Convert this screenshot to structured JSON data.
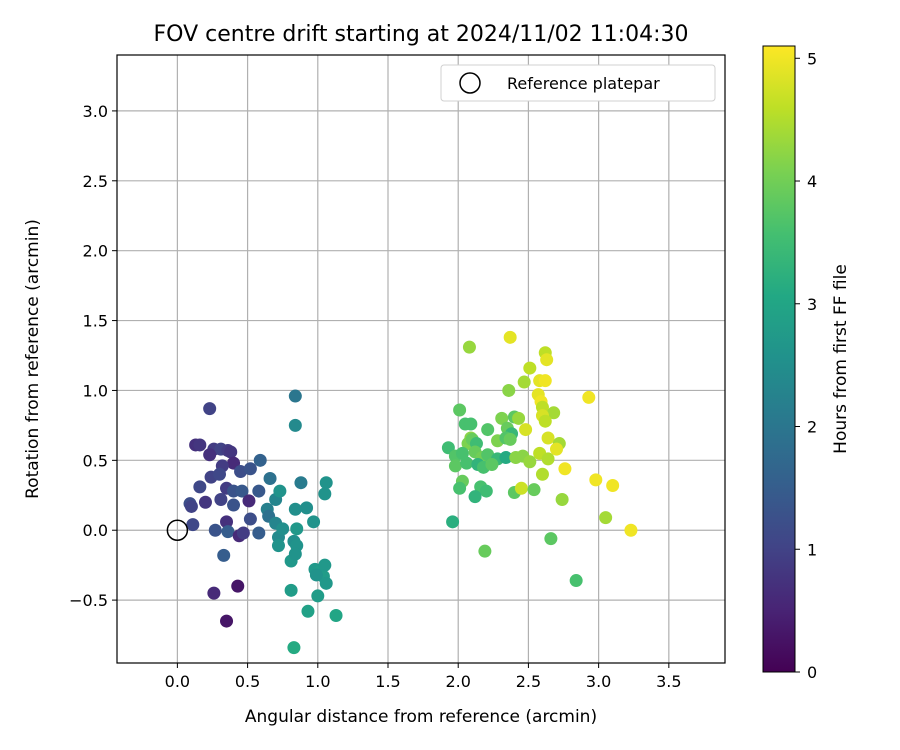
{
  "chart_data": {
    "type": "scatter",
    "title": "FOV centre drift starting at 2024/11/02 11:04:30",
    "xlabel": "Angular distance from reference (arcmin)",
    "ylabel": "Rotation from reference (arcmin)",
    "xlim": [
      -0.43,
      3.9
    ],
    "ylim": [
      -0.95,
      3.4
    ],
    "xticks": [
      "0.0",
      "0.5",
      "1.0",
      "1.5",
      "2.0",
      "2.5",
      "3.0",
      "3.5"
    ],
    "xtick_values": [
      0,
      0.5,
      1.0,
      1.5,
      2.0,
      2.5,
      3.0,
      3.5
    ],
    "yticks": [
      "−0.5",
      "0.0",
      "0.5",
      "1.0",
      "1.5",
      "2.0",
      "2.5",
      "3.0"
    ],
    "ytick_values": [
      -0.5,
      0,
      0.5,
      1.0,
      1.5,
      2.0,
      2.5,
      3.0
    ],
    "grid": true,
    "legend": {
      "placement": "top-right",
      "label": "Reference platepar"
    },
    "reference_point": {
      "x": 0,
      "y": 0
    },
    "colorbar": {
      "label": "Hours from first FF file",
      "colormap": "viridis",
      "range": [
        0,
        5.1
      ],
      "ticks": [
        "0",
        "1",
        "2",
        "3",
        "4",
        "5"
      ],
      "tick_values": [
        0,
        1,
        2,
        3,
        4,
        5
      ]
    },
    "points": [
      {
        "x": 0.35,
        "y": -0.65,
        "t": 0.3
      },
      {
        "x": 0.43,
        "y": -0.4,
        "t": 0.3
      },
      {
        "x": 0.26,
        "y": -0.45,
        "t": 0.6
      },
      {
        "x": 0.23,
        "y": 0.87,
        "t": 1.0
      },
      {
        "x": 0.13,
        "y": 0.61,
        "t": 0.7
      },
      {
        "x": 0.16,
        "y": 0.61,
        "t": 0.8
      },
      {
        "x": 0.26,
        "y": 0.58,
        "t": 0.9
      },
      {
        "x": 0.31,
        "y": 0.58,
        "t": 1.0
      },
      {
        "x": 0.36,
        "y": 0.57,
        "t": 0.9
      },
      {
        "x": 0.38,
        "y": 0.56,
        "t": 0.8
      },
      {
        "x": 0.23,
        "y": 0.54,
        "t": 0.7
      },
      {
        "x": 0.4,
        "y": 0.48,
        "t": 0.6
      },
      {
        "x": 0.32,
        "y": 0.46,
        "t": 0.9
      },
      {
        "x": 0.45,
        "y": 0.42,
        "t": 1.2
      },
      {
        "x": 0.52,
        "y": 0.44,
        "t": 1.3
      },
      {
        "x": 0.59,
        "y": 0.5,
        "t": 1.6
      },
      {
        "x": 0.24,
        "y": 0.38,
        "t": 1.0
      },
      {
        "x": 0.3,
        "y": 0.4,
        "t": 1.1
      },
      {
        "x": 0.35,
        "y": 0.3,
        "t": 0.9
      },
      {
        "x": 0.16,
        "y": 0.31,
        "t": 1.1
      },
      {
        "x": 0.4,
        "y": 0.28,
        "t": 1.3
      },
      {
        "x": 0.46,
        "y": 0.28,
        "t": 1.4
      },
      {
        "x": 0.58,
        "y": 0.28,
        "t": 1.4
      },
      {
        "x": 0.09,
        "y": 0.19,
        "t": 1.2
      },
      {
        "x": 0.1,
        "y": 0.17,
        "t": 1.0
      },
      {
        "x": 0.2,
        "y": 0.2,
        "t": 0.8
      },
      {
        "x": 0.31,
        "y": 0.22,
        "t": 1.0
      },
      {
        "x": 0.4,
        "y": 0.18,
        "t": 1.3
      },
      {
        "x": 0.51,
        "y": 0.21,
        "t": 0.6
      },
      {
        "x": 0.64,
        "y": 0.15,
        "t": 2.2
      },
      {
        "x": 0.66,
        "y": 0.37,
        "t": 1.9
      },
      {
        "x": 0.7,
        "y": 0.22,
        "t": 2.3
      },
      {
        "x": 0.73,
        "y": 0.28,
        "t": 2.6
      },
      {
        "x": 0.11,
        "y": 0.04,
        "t": 1.1
      },
      {
        "x": 0.27,
        "y": 0.0,
        "t": 1.3
      },
      {
        "x": 0.35,
        "y": 0.06,
        "t": 0.7
      },
      {
        "x": 0.36,
        "y": -0.01,
        "t": 1.5
      },
      {
        "x": 0.44,
        "y": -0.04,
        "t": 0.6
      },
      {
        "x": 0.47,
        "y": -0.02,
        "t": 0.9
      },
      {
        "x": 0.52,
        "y": 0.08,
        "t": 1.2
      },
      {
        "x": 0.58,
        "y": -0.02,
        "t": 1.5
      },
      {
        "x": 0.65,
        "y": 0.1,
        "t": 1.9
      },
      {
        "x": 0.7,
        "y": 0.05,
        "t": 2.3
      },
      {
        "x": 0.72,
        "y": -0.05,
        "t": 2.4
      },
      {
        "x": 0.75,
        "y": 0.01,
        "t": 2.5
      },
      {
        "x": 0.33,
        "y": -0.18,
        "t": 1.5
      },
      {
        "x": 0.72,
        "y": -0.11,
        "t": 2.6
      },
      {
        "x": 0.83,
        "y": -0.08,
        "t": 2.5
      },
      {
        "x": 0.85,
        "y": -0.11,
        "t": 2.6
      },
      {
        "x": 0.81,
        "y": -0.22,
        "t": 2.7
      },
      {
        "x": 0.84,
        "y": -0.17,
        "t": 2.6
      },
      {
        "x": 0.84,
        "y": 0.96,
        "t": 2.0
      },
      {
        "x": 0.84,
        "y": 0.75,
        "t": 2.4
      },
      {
        "x": 0.88,
        "y": 0.34,
        "t": 2.1
      },
      {
        "x": 0.84,
        "y": 0.15,
        "t": 2.5
      },
      {
        "x": 0.92,
        "y": 0.16,
        "t": 2.5
      },
      {
        "x": 0.97,
        "y": 0.06,
        "t": 2.6
      },
      {
        "x": 1.06,
        "y": 0.34,
        "t": 2.6
      },
      {
        "x": 1.05,
        "y": 0.26,
        "t": 2.6
      },
      {
        "x": 0.85,
        "y": 0.01,
        "t": 2.7
      },
      {
        "x": 0.98,
        "y": -0.28,
        "t": 2.7
      },
      {
        "x": 1.01,
        "y": -0.3,
        "t": 2.8
      },
      {
        "x": 1.04,
        "y": -0.33,
        "t": 2.8
      },
      {
        "x": 1.06,
        "y": -0.38,
        "t": 2.7
      },
      {
        "x": 1.05,
        "y": -0.25,
        "t": 2.7
      },
      {
        "x": 0.99,
        "y": -0.32,
        "t": 2.6
      },
      {
        "x": 0.81,
        "y": -0.43,
        "t": 2.8
      },
      {
        "x": 1.0,
        "y": -0.47,
        "t": 2.8
      },
      {
        "x": 0.93,
        "y": -0.58,
        "t": 2.9
      },
      {
        "x": 1.13,
        "y": -0.61,
        "t": 3.0
      },
      {
        "x": 0.83,
        "y": -0.84,
        "t": 3.1
      },
      {
        "x": 2.08,
        "y": 1.31,
        "t": 4.3
      },
      {
        "x": 2.37,
        "y": 1.38,
        "t": 4.9
      },
      {
        "x": 2.62,
        "y": 1.27,
        "t": 4.6
      },
      {
        "x": 2.63,
        "y": 1.22,
        "t": 4.9
      },
      {
        "x": 2.51,
        "y": 1.16,
        "t": 4.6
      },
      {
        "x": 2.58,
        "y": 1.07,
        "t": 4.9
      },
      {
        "x": 2.62,
        "y": 1.07,
        "t": 5.0
      },
      {
        "x": 2.47,
        "y": 1.06,
        "t": 4.4
      },
      {
        "x": 2.36,
        "y": 1.0,
        "t": 4.2
      },
      {
        "x": 2.57,
        "y": 0.97,
        "t": 4.9
      },
      {
        "x": 2.59,
        "y": 0.92,
        "t": 5.0
      },
      {
        "x": 2.93,
        "y": 0.95,
        "t": 5.0
      },
      {
        "x": 2.6,
        "y": 0.88,
        "t": 4.6
      },
      {
        "x": 2.68,
        "y": 0.84,
        "t": 4.4
      },
      {
        "x": 2.01,
        "y": 0.86,
        "t": 3.8
      },
      {
        "x": 2.31,
        "y": 0.8,
        "t": 4.1
      },
      {
        "x": 2.4,
        "y": 0.81,
        "t": 3.8
      },
      {
        "x": 2.43,
        "y": 0.8,
        "t": 4.3
      },
      {
        "x": 2.6,
        "y": 0.82,
        "t": 4.8
      },
      {
        "x": 2.62,
        "y": 0.78,
        "t": 4.6
      },
      {
        "x": 2.05,
        "y": 0.76,
        "t": 3.6
      },
      {
        "x": 2.09,
        "y": 0.76,
        "t": 3.6
      },
      {
        "x": 2.21,
        "y": 0.72,
        "t": 3.7
      },
      {
        "x": 2.35,
        "y": 0.73,
        "t": 3.9
      },
      {
        "x": 2.38,
        "y": 0.69,
        "t": 3.4
      },
      {
        "x": 2.48,
        "y": 0.72,
        "t": 4.8
      },
      {
        "x": 2.64,
        "y": 0.66,
        "t": 4.8
      },
      {
        "x": 2.09,
        "y": 0.66,
        "t": 4.2
      },
      {
        "x": 2.07,
        "y": 0.62,
        "t": 4.1
      },
      {
        "x": 2.1,
        "y": 0.65,
        "t": 3.9
      },
      {
        "x": 2.13,
        "y": 0.62,
        "t": 3.5
      },
      {
        "x": 2.28,
        "y": 0.64,
        "t": 4.1
      },
      {
        "x": 2.34,
        "y": 0.66,
        "t": 3.7
      },
      {
        "x": 2.37,
        "y": 0.65,
        "t": 3.9
      },
      {
        "x": 2.72,
        "y": 0.62,
        "t": 4.4
      },
      {
        "x": 2.7,
        "y": 0.58,
        "t": 4.9
      },
      {
        "x": 1.93,
        "y": 0.59,
        "t": 3.5
      },
      {
        "x": 1.98,
        "y": 0.53,
        "t": 3.7
      },
      {
        "x": 2.03,
        "y": 0.55,
        "t": 3.6
      },
      {
        "x": 2.12,
        "y": 0.56,
        "t": 3.9
      },
      {
        "x": 2.17,
        "y": 0.52,
        "t": 4.0
      },
      {
        "x": 2.21,
        "y": 0.54,
        "t": 3.7
      },
      {
        "x": 2.28,
        "y": 0.51,
        "t": 3.4
      },
      {
        "x": 2.34,
        "y": 0.52,
        "t": 3.1
      },
      {
        "x": 2.41,
        "y": 0.52,
        "t": 4.2
      },
      {
        "x": 2.46,
        "y": 0.53,
        "t": 4.2
      },
      {
        "x": 2.58,
        "y": 0.55,
        "t": 4.6
      },
      {
        "x": 2.64,
        "y": 0.51,
        "t": 4.5
      },
      {
        "x": 1.98,
        "y": 0.46,
        "t": 3.8
      },
      {
        "x": 2.06,
        "y": 0.48,
        "t": 3.6
      },
      {
        "x": 2.14,
        "y": 0.47,
        "t": 3.3
      },
      {
        "x": 2.18,
        "y": 0.45,
        "t": 3.6
      },
      {
        "x": 2.24,
        "y": 0.47,
        "t": 3.8
      },
      {
        "x": 2.51,
        "y": 0.49,
        "t": 4.3
      },
      {
        "x": 2.76,
        "y": 0.44,
        "t": 5.0
      },
      {
        "x": 2.6,
        "y": 0.4,
        "t": 4.5
      },
      {
        "x": 2.03,
        "y": 0.35,
        "t": 3.9
      },
      {
        "x": 2.01,
        "y": 0.3,
        "t": 3.6
      },
      {
        "x": 2.16,
        "y": 0.31,
        "t": 3.6
      },
      {
        "x": 2.2,
        "y": 0.28,
        "t": 3.5
      },
      {
        "x": 2.12,
        "y": 0.24,
        "t": 3.3
      },
      {
        "x": 2.4,
        "y": 0.27,
        "t": 3.8
      },
      {
        "x": 2.45,
        "y": 0.3,
        "t": 4.7
      },
      {
        "x": 2.54,
        "y": 0.29,
        "t": 3.9
      },
      {
        "x": 2.98,
        "y": 0.36,
        "t": 5.0
      },
      {
        "x": 3.1,
        "y": 0.32,
        "t": 5.0
      },
      {
        "x": 2.74,
        "y": 0.22,
        "t": 4.3
      },
      {
        "x": 1.96,
        "y": 0.06,
        "t": 3.2
      },
      {
        "x": 3.05,
        "y": 0.09,
        "t": 4.4
      },
      {
        "x": 3.23,
        "y": 0.0,
        "t": 5.0
      },
      {
        "x": 2.66,
        "y": -0.06,
        "t": 3.8
      },
      {
        "x": 2.19,
        "y": -0.15,
        "t": 3.9
      },
      {
        "x": 2.84,
        "y": -0.36,
        "t": 3.6
      }
    ]
  }
}
